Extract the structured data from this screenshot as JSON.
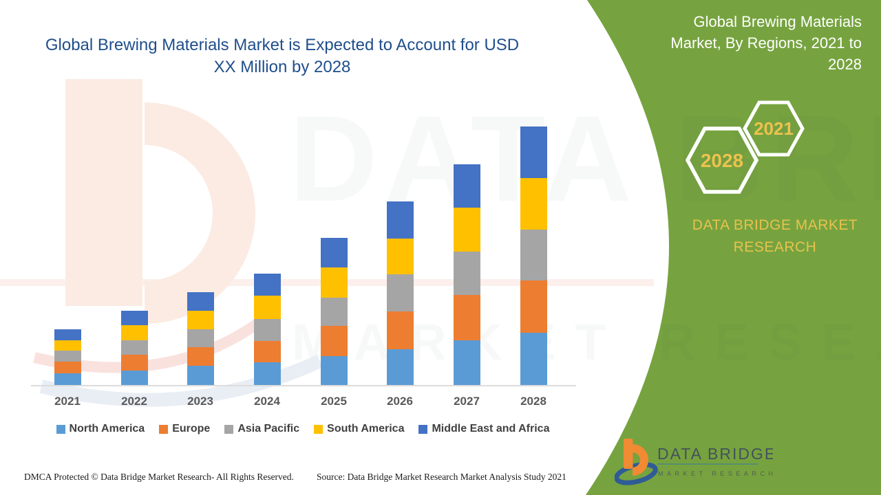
{
  "page": {
    "background": "#FFFFFF"
  },
  "chart_title": "Global Brewing Materials Market is Expected to Account for USD XX Million by 2028",
  "panel": {
    "color": "#76A33F",
    "title": "Global Brewing Materials Market, By Regions, 2021 to 2028",
    "hexagon_small_label": "2021",
    "hexagon_large_label": "2028",
    "brand_text": "DATA BRIDGE MARKET RESEARCH",
    "accent_gold": "#E8C24E"
  },
  "logo": {
    "line1": "DATA BRIDGE",
    "line2": "MARKET RESEARCH"
  },
  "watermark": {
    "line1": "DATA BRIDGE",
    "line2": "MARKET RESEARCH"
  },
  "footer": {
    "dmca": "DMCA Protected © Data Bridge Market Research- All Rights Reserved.",
    "source": "Source: Data Bridge Market Research Market Analysis Study 2021"
  },
  "chart_data": {
    "type": "bar",
    "stacked": true,
    "title": "Global Brewing Materials Market is Expected to Account for USD XX Million by 2028",
    "xlabel": "",
    "ylabel": "",
    "grid": false,
    "value_axis_shown": false,
    "legend_position": "bottom",
    "unit_note": "values estimated in relative units; value axis is unlabeled (USD XX Million) in source image",
    "categories": [
      "2021",
      "2022",
      "2023",
      "2024",
      "2025",
      "2026",
      "2027",
      "2028"
    ],
    "series": [
      {
        "name": "North America",
        "color": "#5B9BD5",
        "values": [
          17,
          21,
          28,
          33,
          42,
          52,
          65,
          76
        ]
      },
      {
        "name": "Europe",
        "color": "#ED7D31",
        "values": [
          17,
          23,
          27,
          31,
          44,
          55,
          66,
          76
        ]
      },
      {
        "name": "Asia Pacific",
        "color": "#A5A5A5",
        "values": [
          16,
          21,
          26,
          32,
          41,
          54,
          63,
          74
        ]
      },
      {
        "name": "South America",
        "color": "#FFC000",
        "values": [
          15,
          22,
          27,
          34,
          44,
          52,
          64,
          75
        ]
      },
      {
        "name": "Middle East and Africa",
        "color": "#4472C4",
        "values": [
          16,
          21,
          27,
          32,
          43,
          54,
          63,
          75
        ]
      }
    ],
    "totals": [
      81,
      108,
      135,
      162,
      214,
      267,
      321,
      376
    ]
  }
}
